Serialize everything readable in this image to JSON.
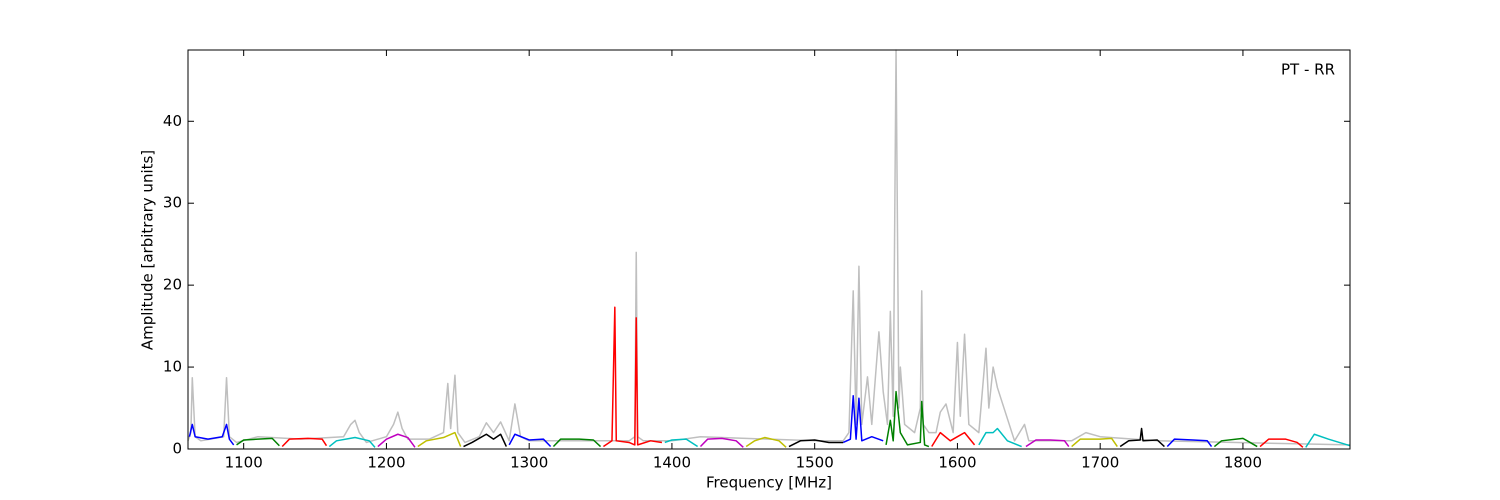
{
  "chart_data": {
    "type": "line",
    "xlabel": "Frequency [MHz]",
    "ylabel": "Amplitude [arbitrary units]",
    "annotation": "PT - RR",
    "xlim": [
      1061,
      1875
    ],
    "ylim": [
      0,
      48.7
    ],
    "xticks": [
      1100,
      1200,
      1300,
      1400,
      1500,
      1600,
      1700,
      1800
    ],
    "yticks": [
      0,
      10,
      20,
      30,
      40
    ],
    "series": [
      {
        "color": "#bfbfbf",
        "x": [
          1061,
          1063,
          1064,
          1066,
          1070,
          1086,
          1088,
          1090,
          1095,
          1110,
          1140,
          1170,
          1175,
          1178,
          1181,
          1186,
          1200,
          1205,
          1208,
          1211,
          1215,
          1230,
          1240,
          1243,
          1245,
          1248,
          1250,
          1255,
          1265,
          1270,
          1275,
          1280,
          1286,
          1290,
          1294,
          1300,
          1320,
          1370,
          1374,
          1375,
          1376,
          1380,
          1400,
          1420,
          1500,
          1520,
          1524,
          1527,
          1529,
          1531,
          1533,
          1537,
          1540,
          1545,
          1548,
          1551,
          1553,
          1555,
          1557,
          1559,
          1560,
          1563,
          1570,
          1574,
          1575,
          1576,
          1580,
          1585,
          1588,
          1592,
          1597,
          1600,
          1602,
          1605,
          1608,
          1615,
          1620,
          1622,
          1625,
          1628,
          1640,
          1647,
          1650,
          1680,
          1690,
          1700,
          1740,
          1875
        ],
        "values": [
          1,
          2,
          8.7,
          1.5,
          1,
          1.5,
          8.7,
          1.5,
          0.8,
          1.5,
          1.2,
          1.5,
          3,
          3.5,
          2,
          0.8,
          1.5,
          3,
          4.5,
          2.5,
          1.2,
          1.2,
          2,
          8,
          2.5,
          9,
          2,
          0.8,
          1.5,
          3.2,
          2,
          3.3,
          1,
          5.5,
          1.5,
          1,
          1,
          1,
          1.5,
          24,
          1.5,
          1,
          1,
          1.5,
          1,
          1,
          2,
          19.3,
          3,
          22.3,
          3,
          8.8,
          3,
          14.3,
          7,
          3,
          16.8,
          4,
          48.7,
          5,
          10,
          3,
          2,
          5,
          19.3,
          3,
          2,
          2,
          4.5,
          5.5,
          2,
          13,
          4,
          14,
          3,
          2,
          12.3,
          5,
          10,
          7.5,
          1,
          3,
          1,
          1,
          2,
          1.5,
          1,
          0.5
        ]
      },
      {
        "color": "#0000ff",
        "x": [
          1062,
          1064,
          1066,
          1075,
          1085,
          1088,
          1090,
          1093
        ],
        "values": [
          1.5,
          3,
          1.5,
          1.2,
          1.5,
          3,
          1.2,
          0.5
        ]
      },
      {
        "color": "#008000",
        "x": [
          1095,
          1100,
          1110,
          1120,
          1125
        ],
        "values": [
          0.5,
          1.1,
          1.2,
          1.3,
          0.4
        ]
      },
      {
        "color": "#ff0000",
        "x": [
          1127,
          1132,
          1145,
          1155,
          1158
        ],
        "values": [
          0.3,
          1.2,
          1.3,
          1.2,
          0.4
        ]
      },
      {
        "color": "#00bfbf",
        "x": [
          1160,
          1165,
          1178,
          1188,
          1192
        ],
        "values": [
          0.3,
          1,
          1.4,
          1,
          0.2
        ]
      },
      {
        "color": "#bf00bf",
        "x": [
          1194,
          1200,
          1208,
          1215,
          1220
        ],
        "values": [
          0.3,
          1.2,
          1.8,
          1.4,
          0.2
        ]
      },
      {
        "color": "#bfbf00",
        "x": [
          1222,
          1228,
          1240,
          1248,
          1252
        ],
        "values": [
          0.3,
          1,
          1.4,
          2,
          0.3
        ]
      },
      {
        "color": "#000000",
        "x": [
          1254,
          1260,
          1270,
          1275,
          1280,
          1284
        ],
        "values": [
          0.3,
          0.8,
          1.8,
          1.2,
          1.8,
          0.3
        ]
      },
      {
        "color": "#0000ff",
        "x": [
          1286,
          1290,
          1300,
          1310,
          1315
        ],
        "values": [
          0.5,
          1.8,
          1.1,
          1.2,
          0.3
        ]
      },
      {
        "color": "#008000",
        "x": [
          1317,
          1322,
          1335,
          1345,
          1350
        ],
        "values": [
          0.3,
          1.2,
          1.2,
          1.1,
          0.3
        ]
      },
      {
        "color": "#ff0000",
        "x": [
          1352,
          1358,
          1360,
          1361,
          1370,
          1374,
          1375,
          1376,
          1385,
          1393
        ],
        "values": [
          0.3,
          1,
          17.3,
          1,
          0.8,
          0.5,
          16,
          0.5,
          1,
          0.8
        ]
      },
      {
        "color": "#00bfbf",
        "x": [
          1395,
          1400,
          1410,
          1418
        ],
        "values": [
          0.8,
          1.1,
          1.2,
          0.3
        ]
      },
      {
        "color": "#bf00bf",
        "x": [
          1420,
          1425,
          1435,
          1445,
          1450
        ],
        "values": [
          0.3,
          1.2,
          1.3,
          1,
          0.2
        ]
      },
      {
        "color": "#bfbf00",
        "x": [
          1452,
          1458,
          1465,
          1475,
          1480
        ],
        "values": [
          0.3,
          1,
          1.4,
          1,
          0.2
        ]
      },
      {
        "color": "#000000",
        "x": [
          1482,
          1490,
          1500,
          1510,
          1520
        ],
        "values": [
          0.3,
          1,
          1.1,
          0.8,
          0.8
        ]
      },
      {
        "color": "#0000ff",
        "x": [
          1520,
          1525,
          1527,
          1529,
          1531,
          1533,
          1540,
          1548
        ],
        "values": [
          0.8,
          1.2,
          6.5,
          1.2,
          6.2,
          1,
          1.5,
          1
        ]
      },
      {
        "color": "#008000",
        "x": [
          1550,
          1553,
          1555,
          1557,
          1560,
          1565,
          1574,
          1575,
          1577,
          1580
        ],
        "values": [
          0.5,
          3.5,
          1,
          7,
          2,
          0.5,
          0.8,
          5.8,
          0.5,
          0.3
        ]
      },
      {
        "color": "#ff0000",
        "x": [
          1582,
          1588,
          1595,
          1600,
          1605,
          1612
        ],
        "values": [
          0.3,
          2,
          1,
          1.5,
          2,
          0.5
        ]
      },
      {
        "color": "#00bfbf",
        "x": [
          1615,
          1620,
          1625,
          1628,
          1635,
          1645
        ],
        "values": [
          0.5,
          2,
          2,
          2.5,
          1,
          0.3
        ]
      },
      {
        "color": "#bf00bf",
        "x": [
          1648,
          1655,
          1665,
          1675,
          1678
        ],
        "values": [
          0.3,
          1.1,
          1.1,
          1,
          0.3
        ]
      },
      {
        "color": "#bfbf00",
        "x": [
          1680,
          1686,
          1700,
          1708,
          1712
        ],
        "values": [
          0.3,
          1.2,
          1.2,
          1.3,
          0.3
        ]
      },
      {
        "color": "#000000",
        "x": [
          1714,
          1720,
          1728,
          1729,
          1730,
          1740,
          1745
        ],
        "values": [
          0.3,
          1,
          1.1,
          2.5,
          1,
          1.1,
          0.3
        ]
      },
      {
        "color": "#0000ff",
        "x": [
          1747,
          1752,
          1765,
          1775,
          1778
        ],
        "values": [
          0.3,
          1.2,
          1.1,
          1,
          0.3
        ]
      },
      {
        "color": "#008000",
        "x": [
          1780,
          1785,
          1800,
          1805,
          1810
        ],
        "values": [
          0.3,
          1,
          1.3,
          0.8,
          0.3
        ]
      },
      {
        "color": "#ff0000",
        "x": [
          1812,
          1818,
          1830,
          1838,
          1842
        ],
        "values": [
          0.3,
          1.2,
          1.2,
          0.8,
          0.2
        ]
      },
      {
        "color": "#00bfbf",
        "x": [
          1844,
          1850,
          1860,
          1875
        ],
        "values": [
          0.2,
          1.8,
          1.2,
          0.4
        ]
      }
    ]
  }
}
